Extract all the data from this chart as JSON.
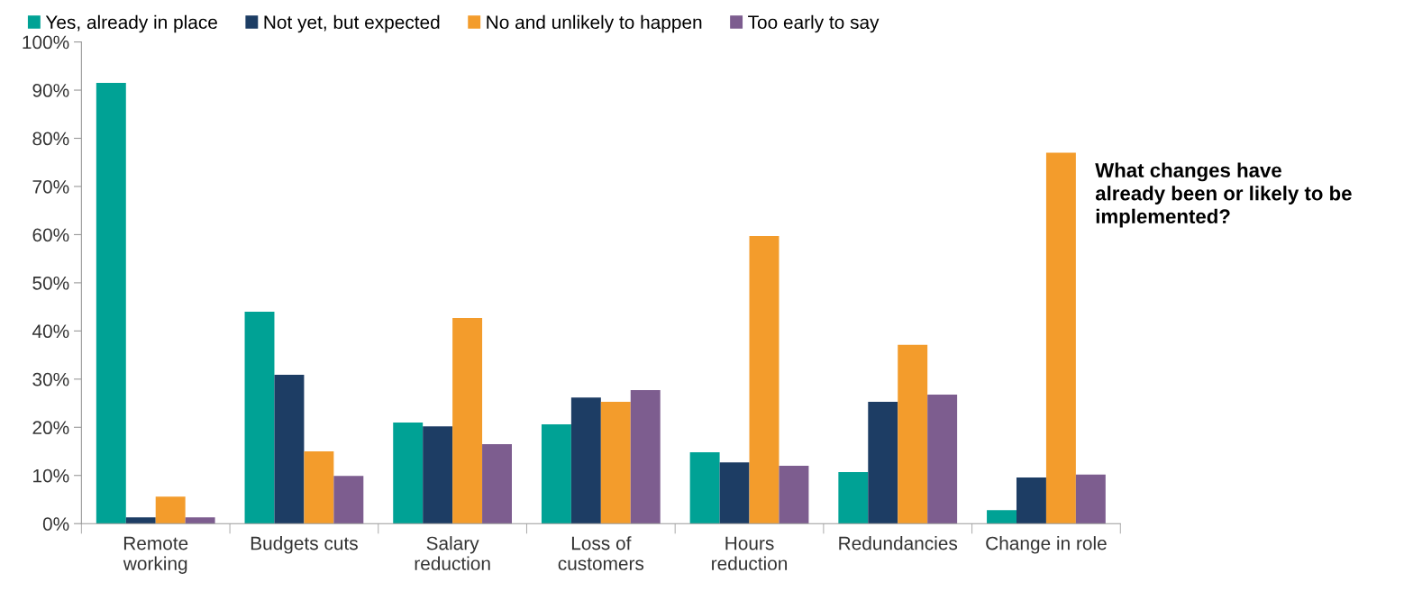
{
  "chart_data": {
    "type": "bar",
    "categories": [
      "Remote\nworking",
      "Budgets cuts",
      "Salary\nreduction",
      "Loss of\ncustomers",
      "Hours\nreduction",
      "Redundancies",
      "Change in role"
    ],
    "series": [
      {
        "name": "Yes, already in place",
        "color": "#00a295",
        "values": [
          91.5,
          44,
          21,
          20.6,
          14.8,
          10.7,
          2.8
        ]
      },
      {
        "name": "Not yet, but expected",
        "color": "#1d3d64",
        "values": [
          1.3,
          30.9,
          20.2,
          26.2,
          12.7,
          25.3,
          9.6
        ]
      },
      {
        "name": "No and unlikely to happen",
        "color": "#f39c2c",
        "values": [
          5.6,
          15,
          42.7,
          25.3,
          59.7,
          37.1,
          77
        ]
      },
      {
        "name": "Too early to say",
        "color": "#7d5d8f",
        "values": [
          1.3,
          9.9,
          16.5,
          27.7,
          12,
          26.8,
          10.2
        ]
      }
    ],
    "ylim": [
      0,
      100
    ],
    "yticks": [
      {
        "value": 0,
        "label": "0%"
      },
      {
        "value": 10,
        "label": "10%"
      },
      {
        "value": 20,
        "label": "20%"
      },
      {
        "value": 30,
        "label": "30%"
      },
      {
        "value": 40,
        "label": "40%"
      },
      {
        "value": 50,
        "label": "50%"
      },
      {
        "value": 60,
        "label": "60%"
      },
      {
        "value": 70,
        "label": "70%"
      },
      {
        "value": 80,
        "label": "80%"
      },
      {
        "value": 90,
        "label": "90%"
      },
      {
        "value": 100,
        "label": "100%"
      }
    ],
    "grid": false,
    "legend": "top",
    "annotations": [
      "What changes have\nalready been or likely to be\nimplemented?"
    ]
  }
}
